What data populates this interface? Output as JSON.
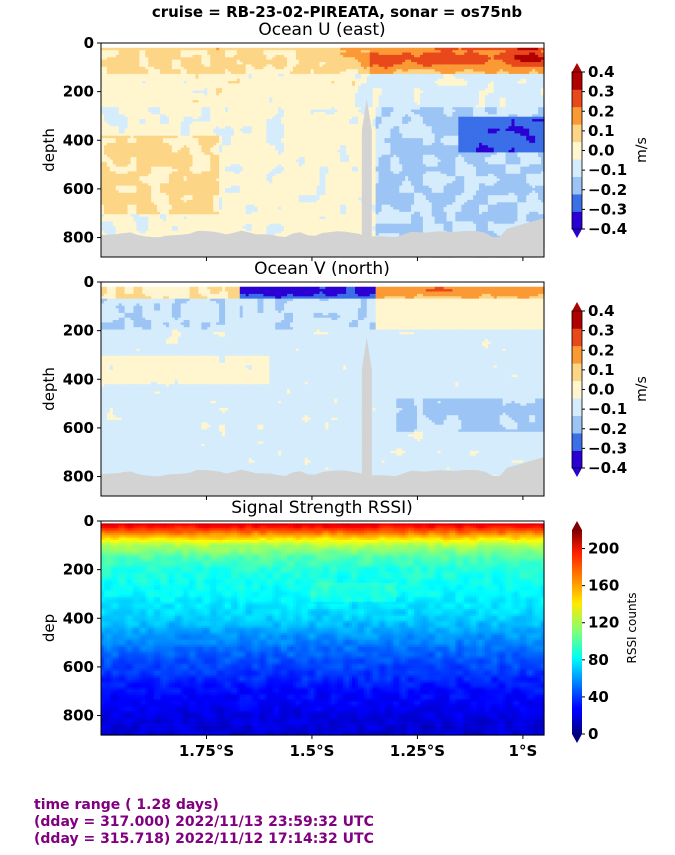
{
  "suptitle": "cruise = RB-23-02-PIREATA,  sonar = os75nb",
  "footer": {
    "line1": "time range ( 1.28 days)",
    "line2": "(dday = 317.000) 2022/11/13 23:59:32 UTC",
    "line3": "(dday = 315.718) 2022/11/12 17:14:32 UTC",
    "color": "#800080"
  },
  "chart_data": [
    {
      "type": "heatmap",
      "title": "Ocean U (east)",
      "ylabel": "depth",
      "xlabel": "",
      "ylim": [
        880,
        0
      ],
      "yticks": [
        "0",
        "200",
        "400",
        "600",
        "800"
      ],
      "xlim": [
        -2.0,
        -0.95
      ],
      "colorbar": {
        "label": "m/s",
        "ticks": [
          "0.4",
          "0.3",
          "0.2",
          "0.1",
          "0.0",
          "−0.1",
          "−0.2",
          "−0.3",
          "−0.4"
        ],
        "levels": [
          -0.4,
          -0.3,
          -0.2,
          -0.1,
          0.0,
          0.1,
          0.2,
          0.3,
          0.4
        ],
        "colors": [
          "#2a00d5",
          "#3a6fe8",
          "#9cc4f5",
          "#d4ecfb",
          "#fff6cf",
          "#fdd586",
          "#fb9a35",
          "#e8481a",
          "#b00000"
        ]
      },
      "structure": {
        "surface_jet": "eastward 0.1–0.4 m/s in upper 0–120 m, strongest near 1°S",
        "mid_depth": "westward −0.1 to −0.3 m/s below 250 m east of 1.3°S",
        "west_deep": "eastward 0.1–0.2 m/s between 400–700 m west of 1.7°S"
      }
    },
    {
      "type": "heatmap",
      "title": "Ocean V (north)",
      "ylabel": "depth",
      "xlabel": "",
      "ylim": [
        880,
        0
      ],
      "yticks": [
        "0",
        "200",
        "400",
        "600",
        "800"
      ],
      "xlim": [
        -2.0,
        -0.95
      ],
      "colorbar": {
        "label": "m/s",
        "ticks": [
          "0.4",
          "0.3",
          "0.2",
          "0.1",
          "0.0",
          "−0.1",
          "−0.2",
          "−0.3",
          "−0.4"
        ],
        "levels": [
          -0.4,
          -0.3,
          -0.2,
          -0.1,
          0.0,
          0.1,
          0.2,
          0.3,
          0.4
        ],
        "colors": [
          "#2a00d5",
          "#3a6fe8",
          "#9cc4f5",
          "#d4ecfb",
          "#fff6cf",
          "#fdd586",
          "#fb9a35",
          "#e8481a",
          "#b00000"
        ]
      },
      "structure": {
        "surface": "southward −0.4 m/s patches near surface at 1.4–1.65°S, northward 0.1–0.3 m/s east of 1.3°S",
        "interior": "weak −0.1 to 0.1 m/s"
      }
    },
    {
      "type": "heatmap",
      "title": "Signal Strength RSSI)",
      "ylabel": "dep",
      "xlabel": "",
      "ylim": [
        880,
        0
      ],
      "yticks": [
        "0",
        "200",
        "400",
        "600",
        "800"
      ],
      "xlim": [
        -2.0,
        -0.95
      ],
      "xticks": [
        "1.75°S",
        "1.5°S",
        "1.25°S",
        "1°S"
      ],
      "xtick_values": [
        -1.75,
        -1.5,
        -1.25,
        -1.0
      ],
      "colorbar": {
        "label": "RSSI counts",
        "ticks": [
          "200",
          "160",
          "120",
          "80",
          "40",
          "0"
        ],
        "range": [
          0,
          220
        ]
      },
      "profile": {
        "depths": [
          0,
          50,
          100,
          150,
          200,
          300,
          400,
          500,
          600,
          700,
          800,
          880
        ],
        "rssi": [
          210,
          165,
          120,
          100,
          90,
          82,
          72,
          55,
          42,
          30,
          22,
          18
        ]
      }
    }
  ]
}
